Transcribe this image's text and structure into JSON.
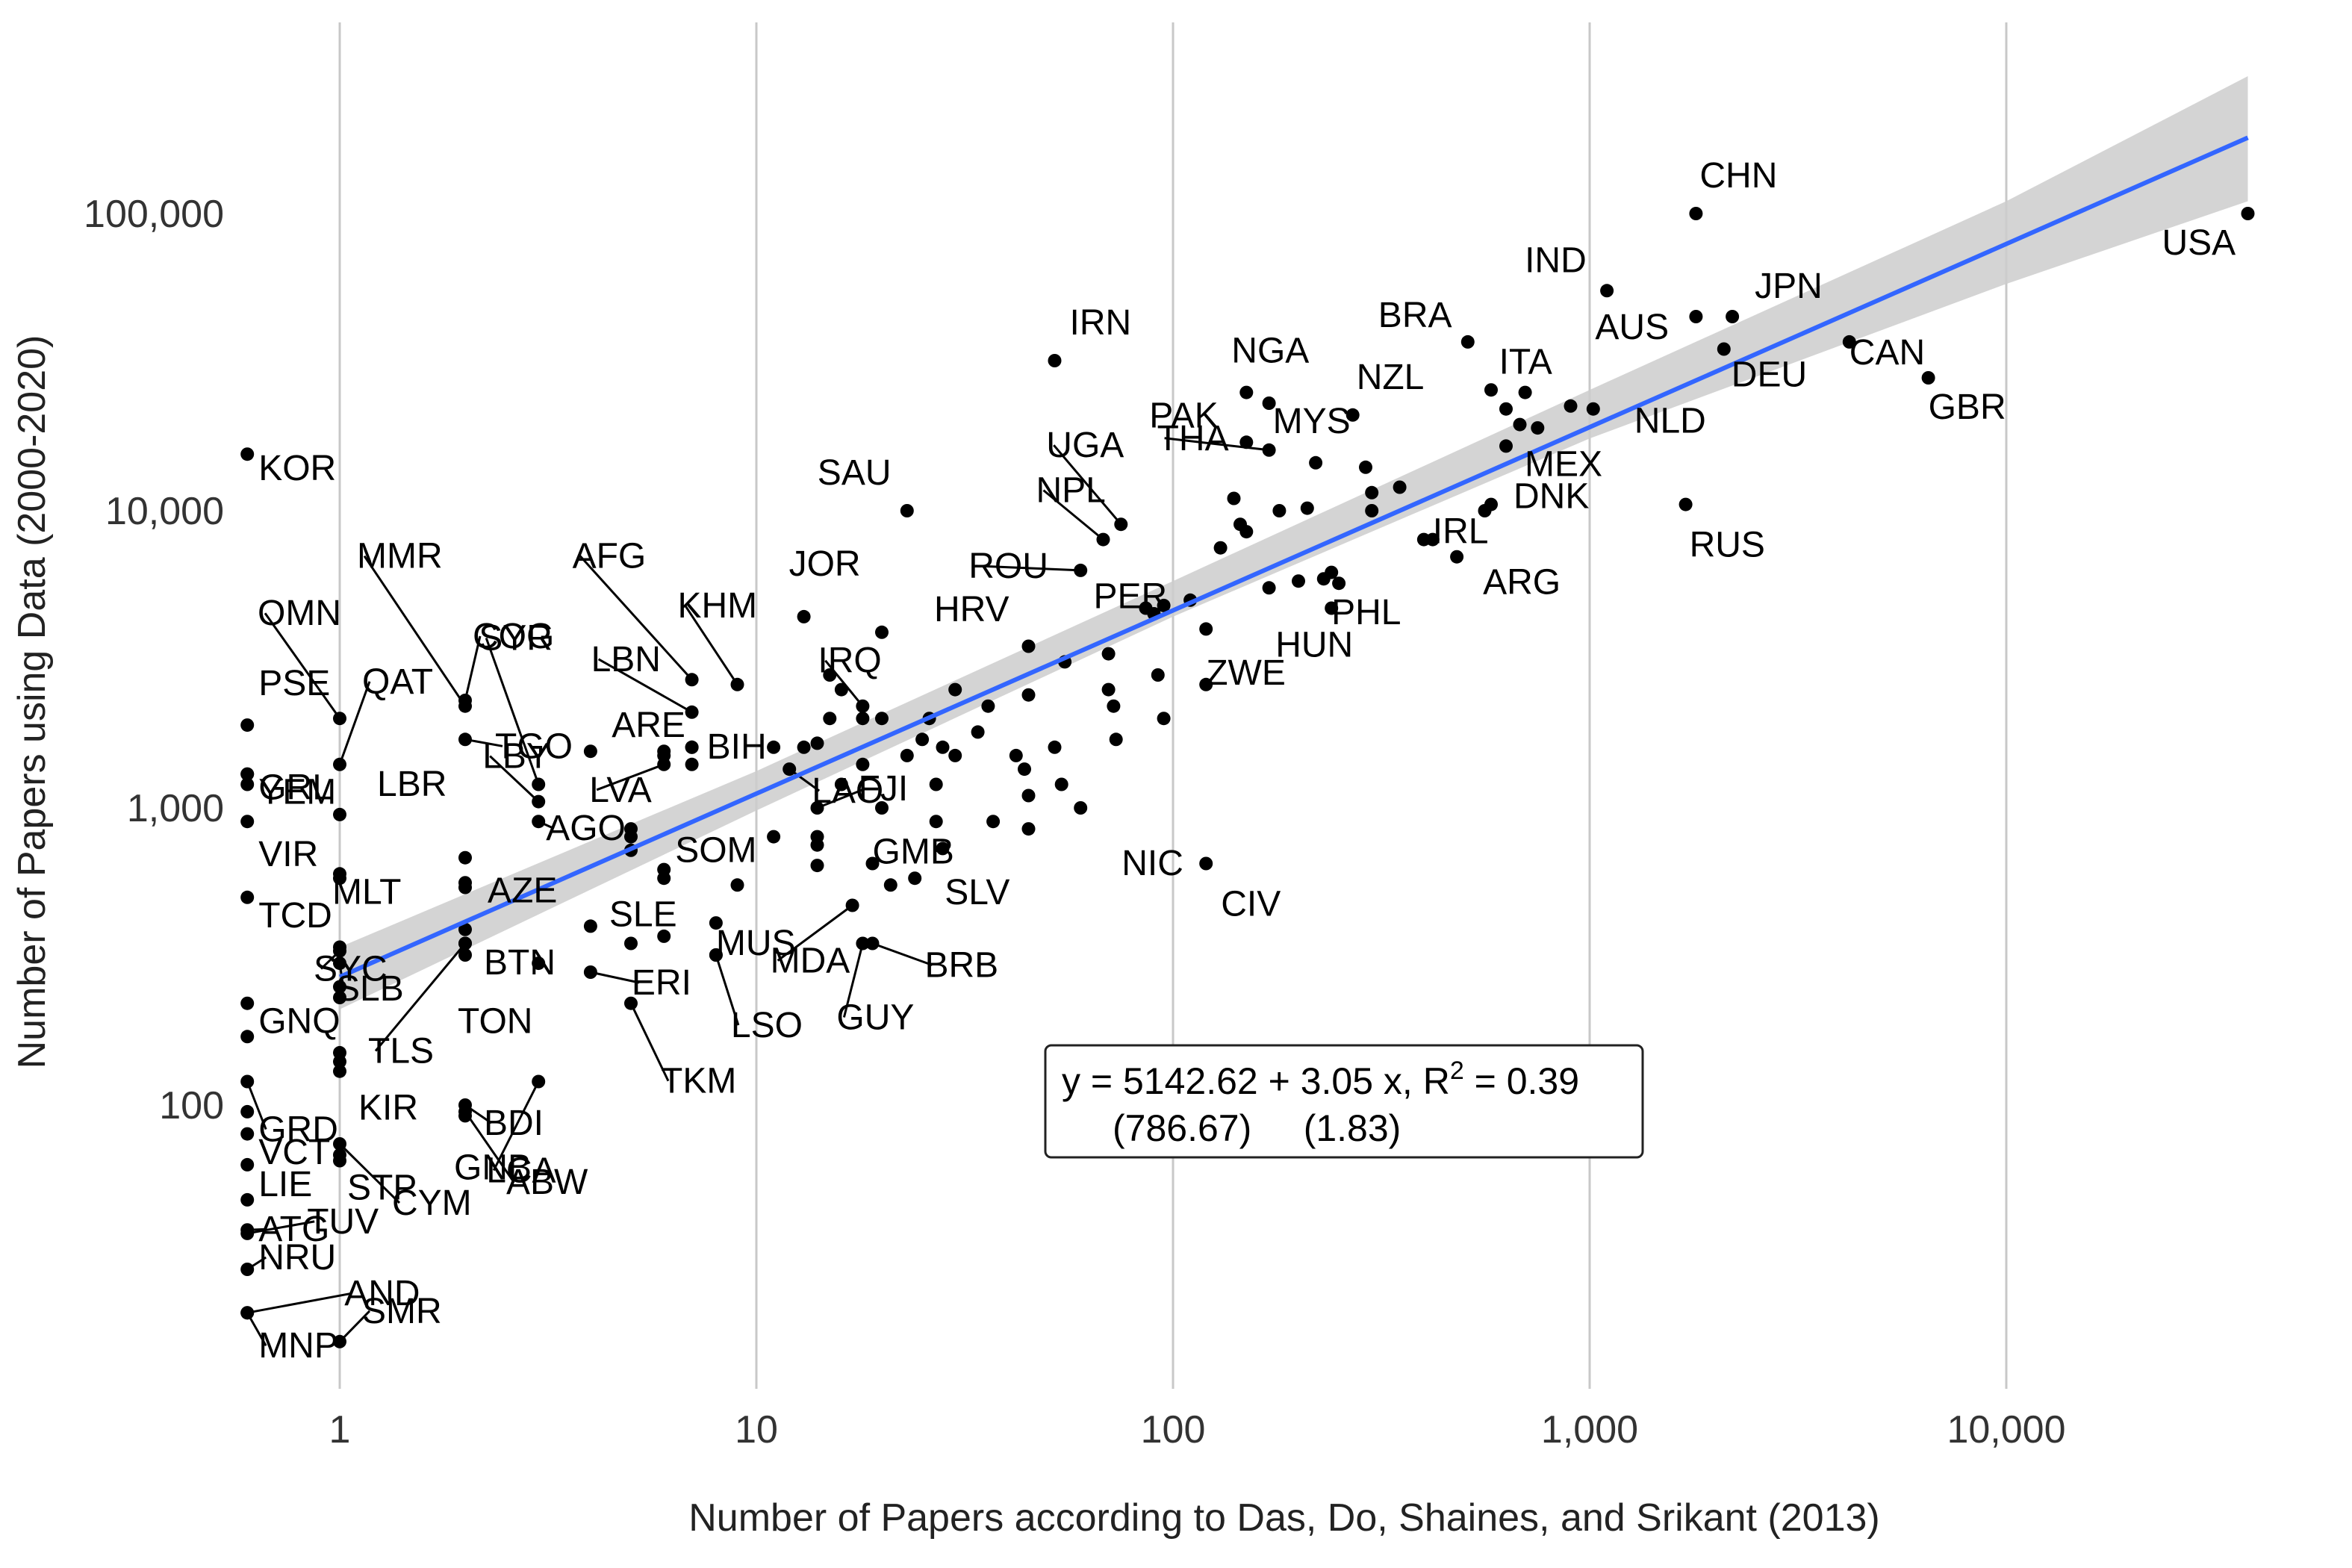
{
  "chart_data": {
    "type": "scatter",
    "xlabel": "Number of Papers according to Das, Do, Shaines, and Srikant (2013)",
    "ylabel": "Number of Papers using Data (2000-2020)",
    "x_scale": "log10",
    "y_scale": "log10",
    "xlim": [
      0.6,
      45000
    ],
    "ylim": [
      16,
      260000
    ],
    "x_ticks": [
      1,
      10,
      100,
      1000,
      10000
    ],
    "x_tick_labels": [
      "1",
      "10",
      "100",
      "1,000",
      "10,000"
    ],
    "y_ticks": [
      100,
      1000,
      10000,
      100000
    ],
    "y_tick_labels": [
      "100",
      "1,000",
      "10,000",
      "100,000"
    ],
    "grid": "vertical major lines only",
    "colors": {
      "points": "#000000",
      "fit_line": "#3366FF",
      "confidence_band": "#cccccc",
      "grid": "#c8c8c8"
    },
    "fit_line": {
      "x": [
        1,
        38000
      ],
      "y": [
        270,
        180000
      ]
    },
    "confidence_band": {
      "x": [
        1,
        10,
        100,
        1000,
        10000,
        38000
      ],
      "lower": [
        210,
        980,
        4400,
        17500,
        58000,
        110000
      ],
      "upper": [
        340,
        1330,
        5800,
        25500,
        110000,
        290000
      ]
    },
    "equation": {
      "line1": "y = 5142.62 + 3.05 x, R",
      "sup": "2",
      "line1_end": " = 0.39",
      "line2": "(786.67)     (1.83)"
    },
    "labeled_points": [
      {
        "label": "USA",
        "x": 38000,
        "y": 100000
      },
      {
        "label": "CHN",
        "x": 1800,
        "y": 100000
      },
      {
        "label": "IND",
        "x": 1100,
        "y": 55000
      },
      {
        "label": "JPN",
        "x": 2200,
        "y": 45000
      },
      {
        "label": "AUS",
        "x": 1800,
        "y": 45000
      },
      {
        "label": "BRA",
        "x": 510,
        "y": 37000
      },
      {
        "label": "CAN",
        "x": 4200,
        "y": 37000
      },
      {
        "label": "DEU",
        "x": 2100,
        "y": 35000
      },
      {
        "label": "GBR",
        "x": 6500,
        "y": 28000
      },
      {
        "label": "ITA",
        "x": 700,
        "y": 25000
      },
      {
        "label": "NLD",
        "x": 1020,
        "y": 22000
      },
      {
        "label": "NZL",
        "x": 270,
        "y": 21000
      },
      {
        "label": "IRN",
        "x": 52,
        "y": 32000
      },
      {
        "label": "NGA",
        "x": 150,
        "y": 25000
      },
      {
        "label": "MYS",
        "x": 170,
        "y": 23000
      },
      {
        "label": "PAK",
        "x": 150,
        "y": 17000
      },
      {
        "label": "MEX",
        "x": 630,
        "y": 16500
      },
      {
        "label": "THA",
        "x": 170,
        "y": 16000
      },
      {
        "label": "UGA",
        "x": 75,
        "y": 9000
      },
      {
        "label": "NPL",
        "x": 68,
        "y": 8000
      },
      {
        "label": "SAU",
        "x": 23,
        "y": 10000
      },
      {
        "label": "RUS",
        "x": 1700,
        "y": 10500
      },
      {
        "label": "DNK",
        "x": 580,
        "y": 10500
      },
      {
        "label": "IRL",
        "x": 420,
        "y": 8000
      },
      {
        "label": "ARG",
        "x": 480,
        "y": 7000
      },
      {
        "label": "ROU",
        "x": 60,
        "y": 6300
      },
      {
        "label": "PHL",
        "x": 250,
        "y": 5700
      },
      {
        "label": "HUN",
        "x": 240,
        "y": 4700
      },
      {
        "label": "JOR",
        "x": 13,
        "y": 4400
      },
      {
        "label": "PER",
        "x": 86,
        "y": 4700
      },
      {
        "label": "HRV",
        "x": 20,
        "y": 3900
      },
      {
        "label": "ZWE",
        "x": 120,
        "y": 2600
      },
      {
        "label": "KHM",
        "x": 9,
        "y": 2600
      },
      {
        "label": "AFG",
        "x": 7,
        "y": 2700
      },
      {
        "label": "IRQ",
        "x": 18,
        "y": 2200
      },
      {
        "label": "LBN",
        "x": 7,
        "y": 2100
      },
      {
        "label": "BIH",
        "x": 7,
        "y": 1600
      },
      {
        "label": "COG",
        "x": 2,
        "y": 2300
      },
      {
        "label": "SYR",
        "x": 3,
        "y": 1200
      },
      {
        "label": "MMR",
        "x": 2,
        "y": 2200
      },
      {
        "label": "OMN",
        "x": 1,
        "y": 2000
      },
      {
        "label": "QAT",
        "x": 1,
        "y": 1400
      },
      {
        "label": "TGO",
        "x": 2,
        "y": 1700
      },
      {
        "label": "ARE",
        "x": 6,
        "y": 1500
      },
      {
        "label": "LBY",
        "x": 3,
        "y": 1050
      },
      {
        "label": "LVA",
        "x": 6,
        "y": 1400
      },
      {
        "label": "LAO",
        "x": 12,
        "y": 1350
      },
      {
        "label": "FJI",
        "x": 14,
        "y": 1000
      },
      {
        "label": "AGO",
        "x": 3,
        "y": 900
      },
      {
        "label": "SOM",
        "x": 6,
        "y": 620
      },
      {
        "label": "GMB",
        "x": 19,
        "y": 650
      },
      {
        "label": "NIC",
        "x": 60,
        "y": 1000
      },
      {
        "label": "CIV",
        "x": 120,
        "y": 650
      },
      {
        "label": "SLV",
        "x": 24,
        "y": 580
      },
      {
        "label": "AZE",
        "x": 2,
        "y": 540
      },
      {
        "label": "BTN",
        "x": 2,
        "y": 390
      },
      {
        "label": "SLE",
        "x": 4,
        "y": 400
      },
      {
        "label": "MUS",
        "x": 8,
        "y": 320
      },
      {
        "label": "MDA",
        "x": 17,
        "y": 470
      },
      {
        "label": "BRB",
        "x": 19,
        "y": 350
      },
      {
        "label": "ERI",
        "x": 4,
        "y": 280
      },
      {
        "label": "LSO",
        "x": 8,
        "y": 320
      },
      {
        "label": "GUY",
        "x": 18,
        "y": 350
      },
      {
        "label": "TKM",
        "x": 5,
        "y": 220
      },
      {
        "label": "LCA",
        "x": 3,
        "y": 120
      },
      {
        "label": "TON",
        "x": 2,
        "y": 350
      },
      {
        "label": "TLS",
        "x": 2,
        "y": 350
      },
      {
        "label": "SLB",
        "x": 1,
        "y": 300
      },
      {
        "label": "SYC",
        "x": 1,
        "y": 330
      },
      {
        "label": "MLT",
        "x": 1,
        "y": 600
      },
      {
        "label": "LBR",
        "x": 1,
        "y": 950
      },
      {
        "label": "KIR",
        "x": 1,
        "y": 130
      },
      {
        "label": "BDI",
        "x": 2,
        "y": 100
      },
      {
        "label": "ABW",
        "x": 2,
        "y": 95
      },
      {
        "label": "GNB",
        "x": 2,
        "y": 92
      },
      {
        "label": "CYM",
        "x": 1,
        "y": 74
      },
      {
        "label": "STP",
        "x": 1,
        "y": 68
      },
      {
        "label": "TUV",
        "x": 0.6,
        "y": 37
      },
      {
        "label": "AND",
        "x": 0.6,
        "y": 20
      },
      {
        "label": "SMR",
        "x": 1,
        "y": 16
      },
      {
        "label": "KOR",
        "x": 0.6,
        "y": 15500
      },
      {
        "label": "PSE",
        "x": 0.6,
        "y": 1900
      },
      {
        "label": "YEM",
        "x": 0.6,
        "y": 1300
      },
      {
        "label": "GRL",
        "x": 0.6,
        "y": 1200
      },
      {
        "label": "VIR",
        "x": 0.6,
        "y": 900
      },
      {
        "label": "TCD",
        "x": 0.6,
        "y": 500
      },
      {
        "label": "GNQ",
        "x": 0.6,
        "y": 220
      },
      {
        "label": "GRD",
        "x": 0.6,
        "y": 120
      },
      {
        "label": "VCT",
        "x": 0.6,
        "y": 95
      },
      {
        "label": "LIE",
        "x": 0.6,
        "y": 48
      },
      {
        "label": "ATG",
        "x": 0.6,
        "y": 38
      },
      {
        "label": "NRU",
        "x": 0.6,
        "y": 28
      },
      {
        "label": "MNP",
        "x": 0.6,
        "y": 20
      }
    ],
    "unlabeled_points": [
      {
        "x": 140,
        "y": 11000
      },
      {
        "x": 145,
        "y": 9000
      },
      {
        "x": 150,
        "y": 8500
      },
      {
        "x": 130,
        "y": 7500
      },
      {
        "x": 180,
        "y": 10000
      },
      {
        "x": 210,
        "y": 10200
      },
      {
        "x": 300,
        "y": 11500
      },
      {
        "x": 350,
        "y": 12000
      },
      {
        "x": 290,
        "y": 14000
      },
      {
        "x": 220,
        "y": 14500
      },
      {
        "x": 630,
        "y": 22000
      },
      {
        "x": 580,
        "y": 25500
      },
      {
        "x": 900,
        "y": 22500
      },
      {
        "x": 680,
        "y": 19500
      },
      {
        "x": 750,
        "y": 19000
      },
      {
        "x": 560,
        "y": 10000
      },
      {
        "x": 400,
        "y": 8000
      },
      {
        "x": 300,
        "y": 10000
      },
      {
        "x": 240,
        "y": 6200
      },
      {
        "x": 230,
        "y": 5900
      },
      {
        "x": 200,
        "y": 5800
      },
      {
        "x": 170,
        "y": 5500
      },
      {
        "x": 110,
        "y": 5000
      },
      {
        "x": 95,
        "y": 4800
      },
      {
        "x": 90,
        "y": 4500
      },
      {
        "x": 120,
        "y": 4000
      },
      {
        "x": 70,
        "y": 3300
      },
      {
        "x": 55,
        "y": 3100
      },
      {
        "x": 45,
        "y": 3500
      },
      {
        "x": 45,
        "y": 2400
      },
      {
        "x": 70,
        "y": 2500
      },
      {
        "x": 92,
        "y": 2800
      },
      {
        "x": 95,
        "y": 2000
      },
      {
        "x": 72,
        "y": 2200
      },
      {
        "x": 73,
        "y": 1700
      },
      {
        "x": 52,
        "y": 1600
      },
      {
        "x": 30,
        "y": 2500
      },
      {
        "x": 34,
        "y": 1800
      },
      {
        "x": 36,
        "y": 2200
      },
      {
        "x": 26,
        "y": 2000
      },
      {
        "x": 25,
        "y": 1700
      },
      {
        "x": 23,
        "y": 1500
      },
      {
        "x": 20,
        "y": 2000
      },
      {
        "x": 18,
        "y": 2000
      },
      {
        "x": 15,
        "y": 2800
      },
      {
        "x": 16,
        "y": 2500
      },
      {
        "x": 13,
        "y": 1600
      },
      {
        "x": 14,
        "y": 1650
      },
      {
        "x": 15,
        "y": 2000
      },
      {
        "x": 11,
        "y": 1600
      },
      {
        "x": 16,
        "y": 1200
      },
      {
        "x": 18,
        "y": 1400
      },
      {
        "x": 27,
        "y": 1200
      },
      {
        "x": 28,
        "y": 1600
      },
      {
        "x": 30,
        "y": 1500
      },
      {
        "x": 42,
        "y": 1500
      },
      {
        "x": 44,
        "y": 1350
      },
      {
        "x": 45,
        "y": 1100
      },
      {
        "x": 54,
        "y": 1200
      },
      {
        "x": 27,
        "y": 900
      },
      {
        "x": 37,
        "y": 900
      },
      {
        "x": 45,
        "y": 850
      },
      {
        "x": 20,
        "y": 1000
      },
      {
        "x": 14,
        "y": 800
      },
      {
        "x": 14,
        "y": 750
      },
      {
        "x": 11,
        "y": 800
      },
      {
        "x": 28,
        "y": 730
      },
      {
        "x": 21,
        "y": 550
      },
      {
        "x": 14,
        "y": 640
      },
      {
        "x": 9,
        "y": 550
      },
      {
        "x": 8,
        "y": 410
      },
      {
        "x": 6,
        "y": 370
      },
      {
        "x": 5,
        "y": 350
      },
      {
        "x": 5,
        "y": 850
      },
      {
        "x": 5,
        "y": 800
      },
      {
        "x": 5,
        "y": 720
      },
      {
        "x": 6,
        "y": 580
      },
      {
        "x": 7,
        "y": 1600
      },
      {
        "x": 6,
        "y": 1550
      },
      {
        "x": 4,
        "y": 1550
      },
      {
        "x": 7,
        "y": 1400
      },
      {
        "x": 3,
        "y": 300
      },
      {
        "x": 2,
        "y": 320
      },
      {
        "x": 1,
        "y": 340
      },
      {
        "x": 1,
        "y": 250
      },
      {
        "x": 1,
        "y": 230
      },
      {
        "x": 1,
        "y": 150
      },
      {
        "x": 1,
        "y": 140
      },
      {
        "x": 1,
        "y": 65
      },
      {
        "x": 2,
        "y": 680
      },
      {
        "x": 2,
        "y": 560
      },
      {
        "x": 1,
        "y": 580
      },
      {
        "x": 0.6,
        "y": 170
      },
      {
        "x": 0.6,
        "y": 1300
      },
      {
        "x": 0.6,
        "y": 80
      },
      {
        "x": 0.6,
        "y": 63
      }
    ]
  }
}
